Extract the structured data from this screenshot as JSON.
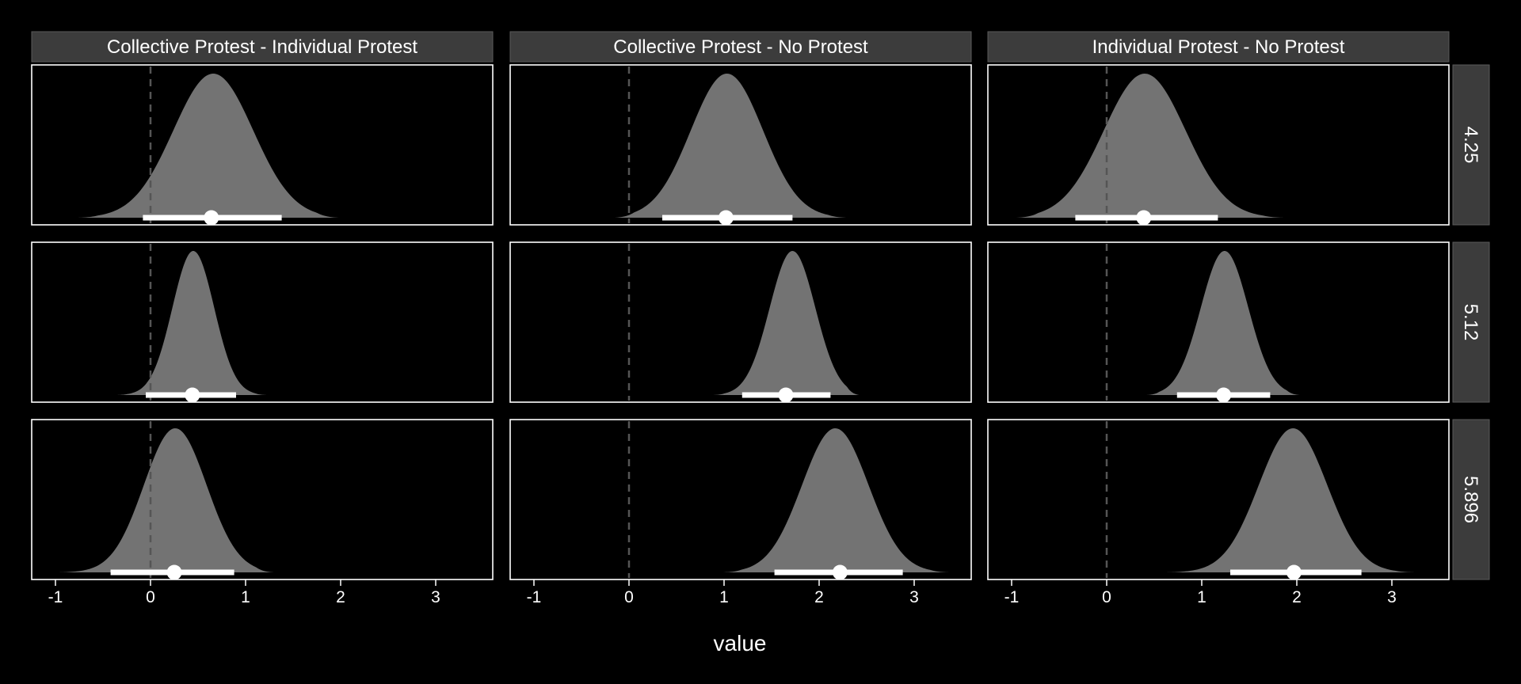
{
  "chart_data": {
    "type": "area",
    "subtype": "faceted posterior density (halfeye) plot",
    "xlabel": "value",
    "ylabel": "",
    "xlim": [
      -1.25,
      3.6
    ],
    "xticks": [
      -1,
      0,
      1,
      2,
      3
    ],
    "xtick_labels": [
      "-1",
      "0",
      "1",
      "2",
      "3"
    ],
    "reference_line": {
      "x": 0,
      "style": "dashed"
    },
    "columns": [
      "Collective Protest - Individual Protest",
      "Collective Protest - No Protest",
      "Individual Protest - No Protest"
    ],
    "rows": [
      "4.25",
      "5.12",
      "5.896"
    ],
    "panels": [
      {
        "row": "4.25",
        "column": "Collective Protest - Individual Protest",
        "median": 0.64,
        "interval": [
          -0.08,
          1.38
        ],
        "density_range": [
          -0.78,
          1.98
        ],
        "peak": 0.66,
        "sd": 0.42
      },
      {
        "row": "4.25",
        "column": "Collective Protest - No Protest",
        "median": 1.02,
        "interval": [
          0.35,
          1.72
        ],
        "density_range": [
          -0.15,
          2.3
        ],
        "peak": 1.03,
        "sd": 0.38
      },
      {
        "row": "4.25",
        "column": "Individual Protest - No Protest",
        "median": 0.39,
        "interval": [
          -0.33,
          1.17
        ],
        "density_range": [
          -0.95,
          1.88
        ],
        "peak": 0.4,
        "sd": 0.43
      },
      {
        "row": "5.12",
        "column": "Collective Protest - Individual Protest",
        "median": 0.44,
        "interval": [
          -0.05,
          0.9
        ],
        "density_range": [
          -0.38,
          1.23
        ],
        "peak": 0.45,
        "sd": 0.22
      },
      {
        "row": "5.12",
        "column": "Collective Protest - No Protest",
        "median": 1.65,
        "interval": [
          1.19,
          2.12
        ],
        "density_range": [
          0.88,
          2.42
        ],
        "peak": 1.72,
        "sd": 0.24
      },
      {
        "row": "5.12",
        "column": "Individual Protest - No Protest",
        "median": 1.23,
        "interval": [
          0.74,
          1.72
        ],
        "density_range": [
          0.42,
          2.03
        ],
        "peak": 1.24,
        "sd": 0.25
      },
      {
        "row": "5.896",
        "column": "Collective Protest - Individual Protest",
        "median": 0.25,
        "interval": [
          -0.42,
          0.88
        ],
        "density_range": [
          -1.02,
          1.3
        ],
        "peak": 0.26,
        "sd": 0.33
      },
      {
        "row": "5.896",
        "column": "Collective Protest - No Protest",
        "median": 2.22,
        "interval": [
          1.53,
          2.88
        ],
        "density_range": [
          0.98,
          3.38
        ],
        "peak": 2.17,
        "sd": 0.35
      },
      {
        "row": "5.896",
        "column": "Individual Protest - No Protest",
        "median": 1.97,
        "interval": [
          1.3,
          2.68
        ],
        "density_range": [
          0.58,
          3.27
        ],
        "peak": 1.96,
        "sd": 0.36
      }
    ],
    "colors": {
      "background": "#000000",
      "panel_border": "#ffffff",
      "strip_fill": "#3c3c3c",
      "density_fill": "#737373",
      "interval": "#ffffff",
      "reference_line": "#555555",
      "text": "#ffffff"
    },
    "grid": false,
    "legend": "none"
  }
}
